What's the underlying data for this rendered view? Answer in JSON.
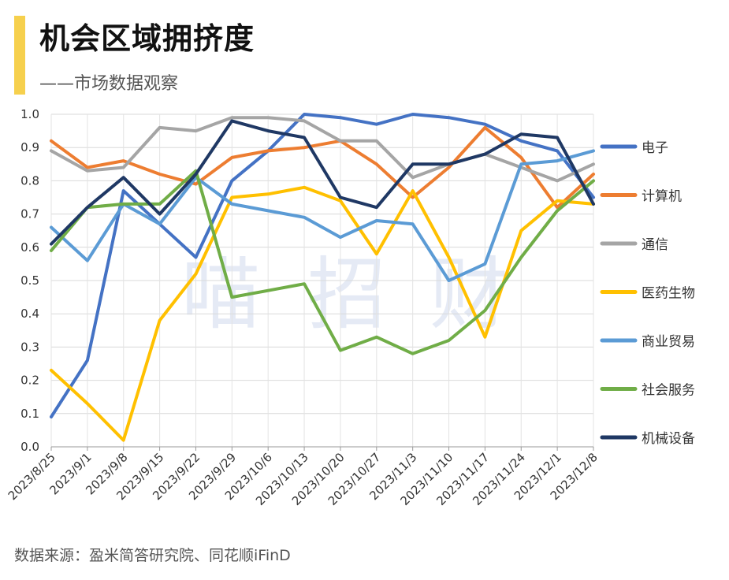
{
  "header": {
    "title": "机会区域拥挤度",
    "subtitle": "——市场数据观察"
  },
  "footer": {
    "source": "数据来源：盈米简答研究院、同花顺iFinD"
  },
  "watermark": [
    "喵",
    "招",
    "财"
  ],
  "chart_data": {
    "type": "line",
    "title": "机会区域拥挤度",
    "xlabel": "",
    "ylabel": "",
    "ylim": [
      0,
      1.0
    ],
    "yticks": [
      "0.0",
      "0.1",
      "0.2",
      "0.3",
      "0.4",
      "0.5",
      "0.6",
      "0.7",
      "0.8",
      "0.9",
      "1.0"
    ],
    "grid": true,
    "legend_position": "right",
    "categories": [
      "2023/8/25",
      "2023/9/1",
      "2023/9/8",
      "2023/9/15",
      "2023/9/22",
      "2023/9/29",
      "2023/10/6",
      "2023/10/13",
      "2023/10/20",
      "2023/10/27",
      "2023/11/3",
      "2023/11/10",
      "2023/11/17",
      "2023/11/24",
      "2023/12/1",
      "2023/12/8"
    ],
    "series": [
      {
        "name": "电子",
        "color": "#4472c4",
        "values": [
          0.09,
          0.26,
          0.77,
          0.67,
          0.57,
          0.8,
          0.89,
          1.0,
          0.99,
          0.97,
          1.0,
          0.99,
          0.97,
          0.92,
          0.89,
          0.75
        ]
      },
      {
        "name": "计算机",
        "color": "#ed7d31",
        "values": [
          0.92,
          0.84,
          0.86,
          0.82,
          0.79,
          0.87,
          0.89,
          0.9,
          0.92,
          0.85,
          0.75,
          0.84,
          0.96,
          0.87,
          0.72,
          0.82
        ]
      },
      {
        "name": "通信",
        "color": "#a5a5a5",
        "values": [
          0.89,
          0.83,
          0.84,
          0.96,
          0.95,
          0.99,
          0.99,
          0.98,
          0.92,
          0.92,
          0.81,
          0.85,
          0.88,
          0.84,
          0.8,
          0.85
        ]
      },
      {
        "name": "医药生物",
        "color": "#ffc000",
        "values": [
          0.23,
          0.13,
          0.02,
          0.38,
          0.52,
          0.75,
          0.76,
          0.78,
          0.74,
          0.58,
          0.77,
          0.57,
          0.33,
          0.65,
          0.74,
          0.73
        ]
      },
      {
        "name": "商业贸易",
        "color": "#5b9bd5",
        "values": [
          0.66,
          0.56,
          0.73,
          0.67,
          0.81,
          0.73,
          0.71,
          0.69,
          0.63,
          0.68,
          0.67,
          0.5,
          0.55,
          0.85,
          0.86,
          0.89
        ]
      },
      {
        "name": "社会服务",
        "color": "#70ad47",
        "values": [
          0.59,
          0.72,
          0.73,
          0.73,
          0.83,
          0.45,
          0.47,
          0.49,
          0.29,
          0.33,
          0.28,
          0.32,
          0.41,
          0.57,
          0.71,
          0.8
        ]
      },
      {
        "name": "机械设备",
        "color": "#1f3864",
        "values": [
          0.61,
          0.72,
          0.81,
          0.7,
          0.82,
          0.98,
          0.95,
          0.93,
          0.75,
          0.72,
          0.85,
          0.85,
          0.88,
          0.94,
          0.93,
          0.73
        ]
      }
    ]
  }
}
